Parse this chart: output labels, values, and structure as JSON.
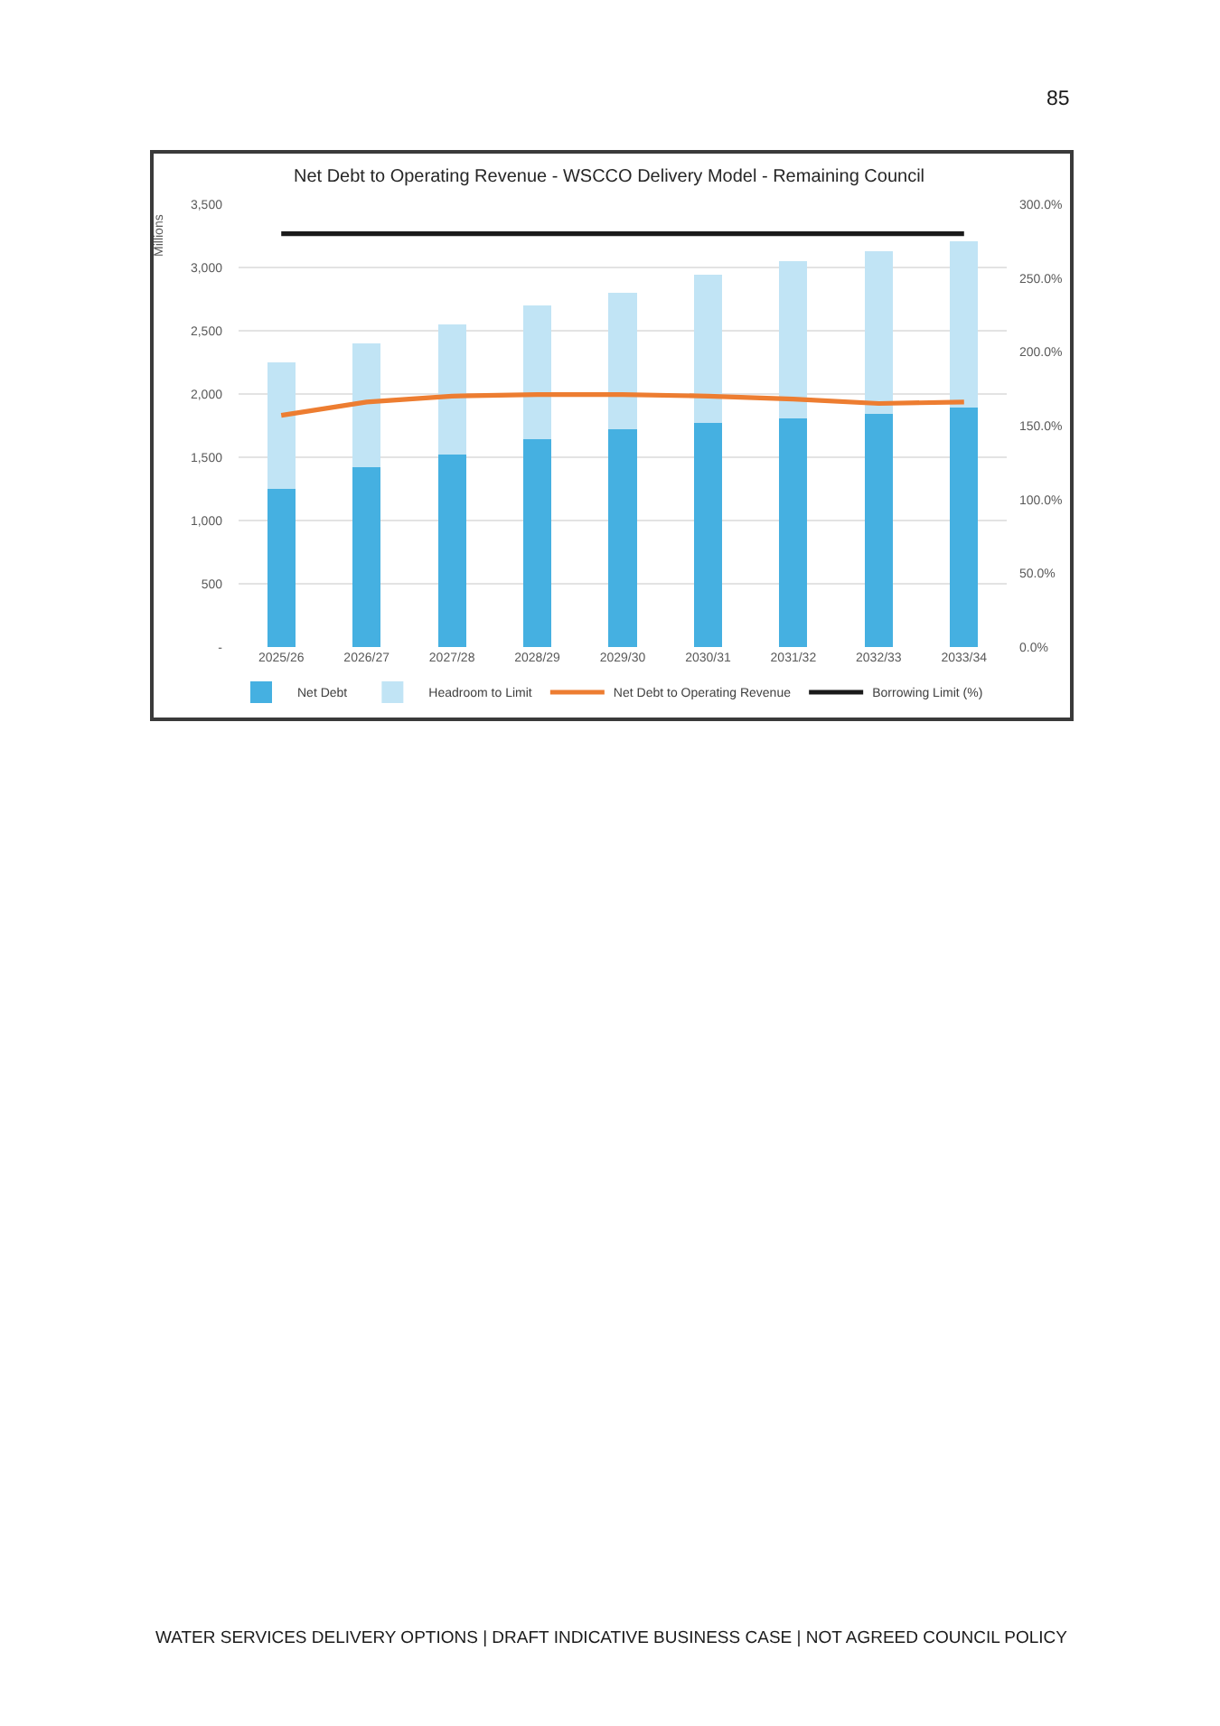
{
  "chart_data": {
    "type": "bar",
    "title": "Net Debt to Operating Revenue - WSCCO Delivery Model - Remaining Council",
    "ylabel": "Millions",
    "categories": [
      "2025/26",
      "2026/27",
      "2027/28",
      "2028/29",
      "2029/30",
      "2030/31",
      "2031/32",
      "2032/33",
      "2033/34"
    ],
    "stacked": true,
    "series": [
      {
        "name": "Net Debt",
        "color": "#45b0e1",
        "values": [
          1250,
          1420,
          1520,
          1640,
          1720,
          1770,
          1810,
          1840,
          1890
        ]
      },
      {
        "name": "Headroom to Limit",
        "color": "#c1e4f5",
        "values": [
          1000,
          980,
          1030,
          1060,
          1080,
          1170,
          1240,
          1290,
          1320
        ]
      },
      {
        "name": "Net Debt to Operating Revenue",
        "type": "line",
        "axis": "y2",
        "color": "#ed7d31",
        "values": [
          157,
          166,
          170,
          171,
          171,
          170,
          168,
          165,
          166
        ]
      },
      {
        "name": "Borrowing Limit (%)",
        "type": "line",
        "axis": "y2",
        "color": "#1a1a1a",
        "values": [
          280,
          280,
          280,
          280,
          280,
          280,
          280,
          280,
          280
        ]
      }
    ],
    "ylim": [
      0,
      3500
    ],
    "yticks": [
      {
        "value": 0,
        "label": "-"
      },
      500,
      {
        "value": 1000,
        "label": "1,000"
      },
      {
        "value": 1500,
        "label": "1,500"
      },
      {
        "value": 2000,
        "label": "2,000"
      },
      {
        "value": 2500,
        "label": "2,500"
      },
      {
        "value": 3000,
        "label": "3,000"
      },
      {
        "value": 3500,
        "label": "3,500"
      }
    ],
    "y2lim": [
      0,
      300
    ],
    "y2ticks": [
      {
        "value": 0,
        "label": "0.0%"
      },
      {
        "value": 50,
        "label": "50.0%"
      },
      {
        "value": 100,
        "label": "100.0%"
      },
      {
        "value": 150,
        "label": "150.0%"
      },
      {
        "value": 200,
        "label": "200.0%"
      },
      {
        "value": 250,
        "label": "250.0%"
      },
      {
        "value": 300,
        "label": "300.0%"
      }
    ],
    "grid": "y",
    "legend": "bottom",
    "marker": "none",
    "annotations": [
      "85",
      "WATER SERVICES DELIVERY OPTIONS | DRAFT INDICATIVE BUSINESS CASE | NOT AGREED COUNCIL POLICY"
    ]
  }
}
